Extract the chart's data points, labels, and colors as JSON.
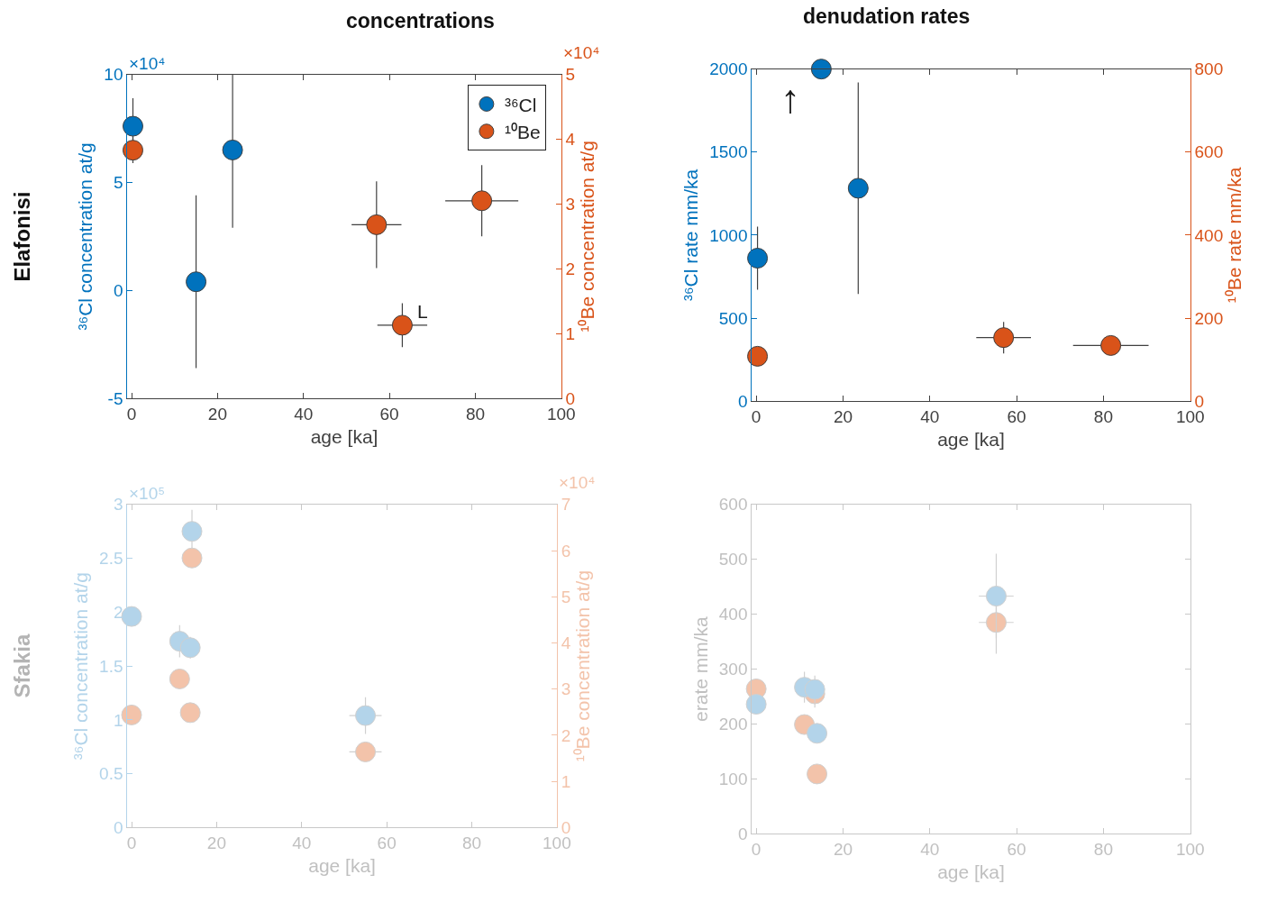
{
  "chart_data": [
    {
      "type": "scatter",
      "title": "concentrations",
      "xlabel": "age [ka]",
      "ylabel": "³⁶Cl concentration at/g",
      "y2label": "¹⁰Be concentration at/g",
      "marker": "circle",
      "legend": "top right",
      "xlim": [
        -1,
        100
      ],
      "xticks": [
        0,
        20,
        40,
        60,
        80,
        100
      ],
      "ylim": [
        -5,
        10
      ],
      "yticks": [
        -5,
        0,
        5,
        10
      ],
      "y2lim": [
        0,
        5
      ],
      "y2ticks": [
        0,
        1,
        2,
        3,
        4,
        5
      ],
      "annotations": [
        "×10⁴",
        "×10⁴",
        "Elafonisi",
        "L"
      ],
      "series": [
        {
          "name": "³⁶Cl",
          "color": "#0072bd",
          "x": [
            0.3,
            15,
            23.5
          ],
          "values": [
            7.6,
            0.4,
            6.5
          ],
          "errors": [
            1.3,
            4.0,
            3.6
          ],
          "xerrors": [
            null,
            null,
            null
          ]
        },
        {
          "name": "¹⁰Be",
          "color": "#d95319",
          "axis": "y2",
          "x": [
            0.3,
            57,
            81.5,
            63
          ],
          "values": [
            3.83,
            2.68,
            3.05,
            1.13
          ],
          "errors": [
            0.2,
            0.67,
            0.55,
            0.34
          ],
          "xerrors": [
            null,
            5.8,
            8.5,
            5.8
          ]
        }
      ]
    },
    {
      "type": "scatter",
      "title": "denudation rates",
      "xlabel": "age [ka]",
      "ylabel": "³⁶Cl rate mm/ka",
      "y2label": "¹⁰Be rate mm/ka",
      "marker": "circle",
      "xlim": [
        -1,
        100
      ],
      "xticks": [
        0,
        20,
        40,
        60,
        80,
        100
      ],
      "ylim": [
        0,
        2000
      ],
      "yticks": [
        0,
        500,
        1000,
        1500,
        2000
      ],
      "y2lim": [
        0,
        800
      ],
      "y2ticks": [
        0,
        200,
        400,
        600,
        800
      ],
      "annotations": [
        "↑"
      ],
      "series": [
        {
          "color": "#0072bd",
          "x": [
            0.3,
            15,
            23.5
          ],
          "values": [
            861,
            2000,
            1282
          ],
          "errors": [
            190,
            null,
            637
          ],
          "xerrors": [
            null,
            null,
            null
          ]
        },
        {
          "color": "#d95319",
          "axis": "y2",
          "x": [
            0.3,
            57,
            81.7
          ],
          "values": [
            108,
            153,
            134
          ],
          "errors": [
            null,
            38,
            null
          ],
          "xerrors": [
            null,
            6.3,
            8.7
          ]
        }
      ]
    },
    {
      "type": "scatter",
      "xlabel": "age [ka]",
      "ylabel": "³⁶Cl concentration at/g",
      "y2label": "¹⁰Be concentration at/g",
      "marker": "circle",
      "xlim": [
        -1,
        100
      ],
      "xticks": [
        0,
        20,
        40,
        60,
        80,
        100
      ],
      "ylim": [
        0,
        3
      ],
      "yticks": [
        0,
        0.5,
        1,
        1.5,
        2,
        2.5,
        3
      ],
      "y2lim": [
        0,
        7
      ],
      "y2ticks": [
        0,
        1,
        2,
        3,
        4,
        5,
        6,
        7
      ],
      "annotations": [
        "×10⁵",
        "×10⁴",
        "Sfakia"
      ],
      "series": [
        {
          "color": "#b3d4ea",
          "x": [
            0,
            11.3,
            13.8,
            14.2,
            55
          ],
          "values": [
            1.96,
            1.73,
            1.67,
            2.75,
            1.04
          ],
          "errors": [
            0.05,
            0.15,
            0.1,
            0.2,
            0.17
          ],
          "xerrors": [
            null,
            null,
            null,
            null,
            3.8
          ]
        },
        {
          "color": "#f3c3aa",
          "axis": "y2",
          "x": [
            0,
            11.3,
            13.8,
            14.2,
            55
          ],
          "values": [
            2.44,
            3.22,
            2.49,
            5.84,
            1.64
          ],
          "errors": [
            null,
            null,
            null,
            0.2,
            null
          ],
          "xerrors": [
            null,
            null,
            null,
            null,
            3.8
          ]
        }
      ]
    },
    {
      "type": "scatter",
      "xlabel": "age [ka]",
      "ylabel": "erate mm/ka",
      "marker": "circle",
      "xlim": [
        -1,
        100
      ],
      "xticks": [
        0,
        20,
        40,
        60,
        80,
        100
      ],
      "ylim": [
        0,
        600
      ],
      "yticks": [
        0,
        100,
        200,
        300,
        400,
        500,
        600
      ],
      "series": [
        {
          "color": "#f3c3aa",
          "x": [
            0,
            11.1,
            13.5,
            14,
            55.3
          ],
          "values": [
            264,
            199,
            255,
            109,
            385
          ],
          "errors": [
            null,
            null,
            25,
            null,
            57
          ],
          "xerrors": [
            null,
            null,
            null,
            null,
            4
          ]
        },
        {
          "color": "#b3d4ea",
          "x": [
            0,
            11.1,
            13.5,
            14,
            55.3
          ],
          "values": [
            236,
            267,
            263,
            183,
            433
          ],
          "errors": [
            null,
            28,
            25,
            null,
            77
          ],
          "xerrors": [
            null,
            null,
            null,
            null,
            4
          ]
        }
      ]
    }
  ]
}
